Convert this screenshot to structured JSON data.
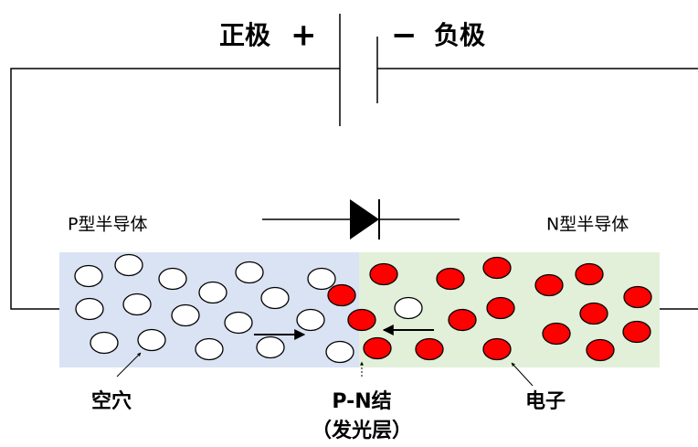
{
  "battery": {
    "positive_label": "正极",
    "plus_sign": "+",
    "minus_sign": "−",
    "negative_label": "负极"
  },
  "regions": {
    "p_type": "P型半导体",
    "n_type": "N型半导体"
  },
  "labels": {
    "hole": "空穴",
    "junction": "P-N结",
    "junction_note": "（发光层）",
    "electron": "电子"
  }
}
